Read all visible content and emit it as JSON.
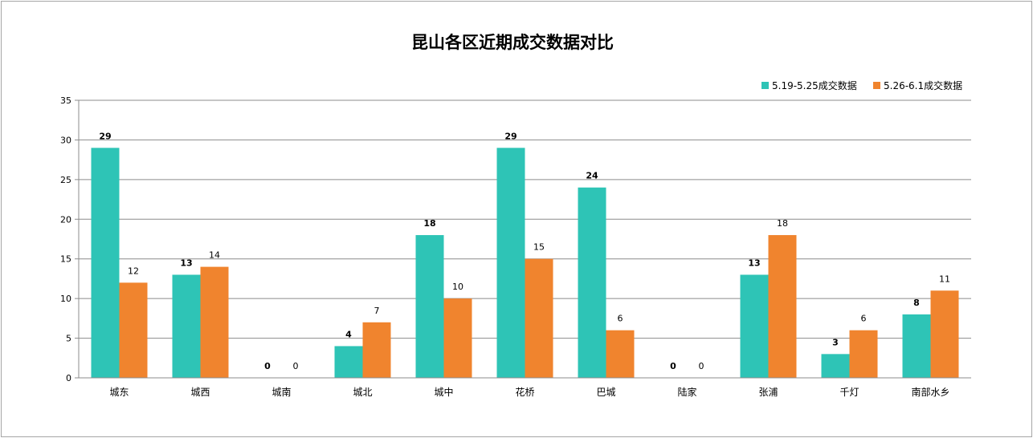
{
  "chart_data": {
    "type": "bar",
    "title": "昆山各区近期成交数据对比",
    "categories": [
      "城东",
      "城西",
      "城南",
      "城北",
      "城中",
      "花桥",
      "巴城",
      "陆家",
      "张浦",
      "千灯",
      "南部水乡"
    ],
    "series": [
      {
        "name": "5.19-5.25成交数据",
        "color": "#2ec4b6",
        "values": [
          29,
          13,
          0,
          4,
          18,
          29,
          24,
          0,
          13,
          3,
          8
        ]
      },
      {
        "name": "5.26-6.1成交数据",
        "color": "#f0842e",
        "values": [
          12,
          14,
          0,
          7,
          10,
          15,
          6,
          0,
          18,
          6,
          11
        ]
      }
    ],
    "ylim": [
      0,
      35
    ],
    "yticks": [
      0,
      5,
      10,
      15,
      20,
      25,
      30,
      35
    ],
    "xlabel": "",
    "ylabel": "",
    "grid": true,
    "legend": "top-right"
  }
}
